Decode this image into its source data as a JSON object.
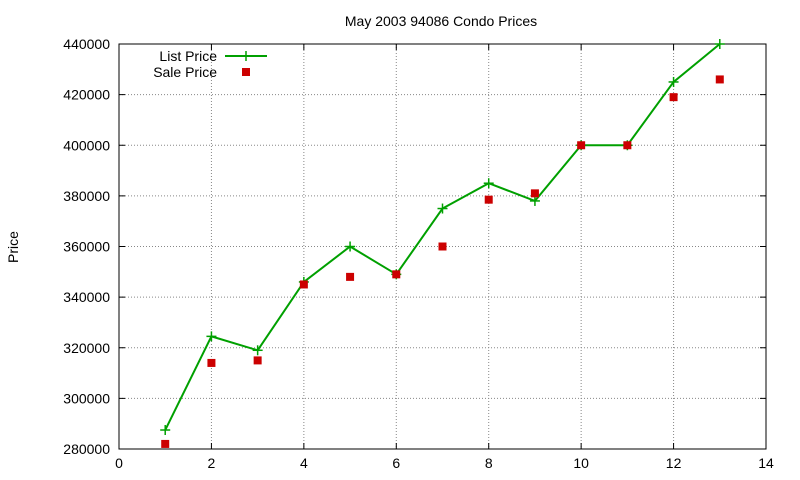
{
  "chart_data": {
    "type": "line",
    "title": "May 2003 94086 Condo Prices",
    "xlabel": "",
    "ylabel": "Price",
    "xlim": [
      0,
      14
    ],
    "ylim": [
      280000,
      440000
    ],
    "xticks": [
      0,
      2,
      4,
      6,
      8,
      10,
      12,
      14
    ],
    "yticks": [
      280000,
      300000,
      320000,
      340000,
      360000,
      380000,
      400000,
      420000,
      440000
    ],
    "grid": true,
    "legend_position": "top-left",
    "x": [
      1,
      2,
      3,
      4,
      5,
      6,
      7,
      8,
      9,
      10,
      11,
      12,
      13
    ],
    "series": [
      {
        "name": "List Price",
        "style": "linespoints",
        "marker": "plus",
        "color": "#00a000",
        "values": [
          287500,
          324500,
          319000,
          346000,
          360000,
          349000,
          375000,
          385000,
          378000,
          400000,
          400000,
          425000,
          440000
        ]
      },
      {
        "name": "Sale Price",
        "style": "points",
        "marker": "square",
        "color": "#cc0000",
        "values": [
          282000,
          314000,
          315000,
          345000,
          348000,
          349000,
          360000,
          378500,
          381000,
          400000,
          400000,
          419000,
          426000
        ]
      }
    ]
  }
}
